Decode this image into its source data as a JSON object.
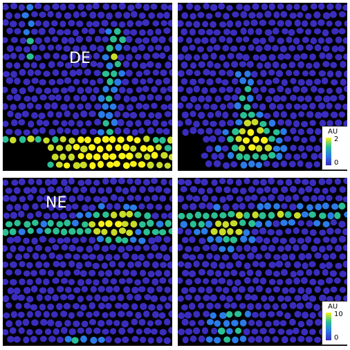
{
  "panels": [
    {
      "id": "tl",
      "label": "DE"
    },
    {
      "id": "tr",
      "label": ""
    },
    {
      "id": "bl",
      "label": "NE"
    },
    {
      "id": "br",
      "label": ""
    }
  ],
  "colorbars": [
    {
      "title": "AU",
      "max": "2",
      "min": "0"
    },
    {
      "title": "AU",
      "max": "10",
      "min": "0"
    }
  ],
  "colors": {
    "background": "#000000",
    "low": "#3a2dbd",
    "mid": "#2b7be8",
    "teal": "#2bbf94",
    "high": "#f8f21a"
  }
}
